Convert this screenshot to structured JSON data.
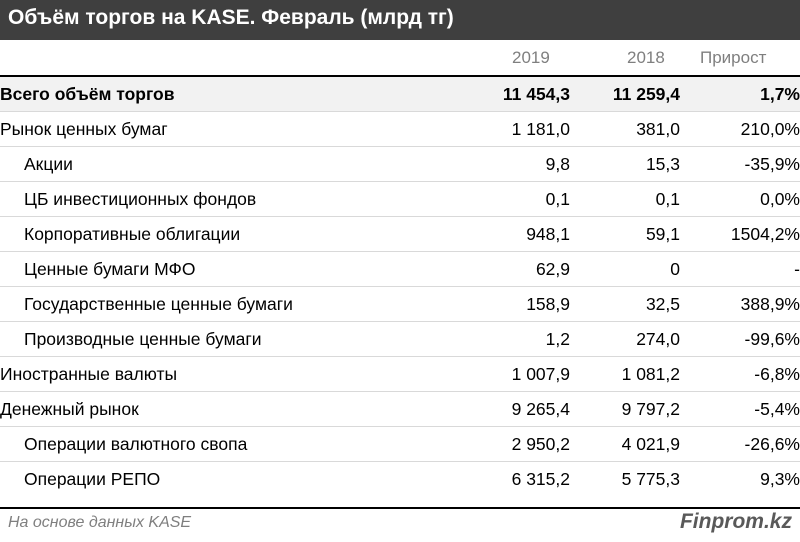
{
  "title": "Объём торгов на KASE. Февраль (млрд тг)",
  "columns": [
    "2019",
    "2018",
    "Прирост"
  ],
  "rows": [
    {
      "label": "Всего объём торгов",
      "v2019": "11 454,3",
      "v2018": "11 259,4",
      "growth": "1,7%",
      "total": true,
      "indent": false
    },
    {
      "label": "Рынок ценных бумаг",
      "v2019": "1 181,0",
      "v2018": "381,0",
      "growth": "210,0%",
      "total": false,
      "indent": false
    },
    {
      "label": "Акции",
      "v2019": "9,8",
      "v2018": "15,3",
      "growth": "-35,9%",
      "total": false,
      "indent": true
    },
    {
      "label": "ЦБ инвестиционных фондов",
      "v2019": "0,1",
      "v2018": "0,1",
      "growth": "0,0%",
      "total": false,
      "indent": true
    },
    {
      "label": "Корпоративные облигации",
      "v2019": "948,1",
      "v2018": "59,1",
      "growth": "1504,2%",
      "total": false,
      "indent": true
    },
    {
      "label": "Ценные бумаги МФО",
      "v2019": "62,9",
      "v2018": "0",
      "growth": "-",
      "total": false,
      "indent": true
    },
    {
      "label": "Государственные ценные бумаги",
      "v2019": "158,9",
      "v2018": "32,5",
      "growth": "388,9%",
      "total": false,
      "indent": true
    },
    {
      "label": "Производные ценные бумаги",
      "v2019": "1,2",
      "v2018": "274,0",
      "growth": "-99,6%",
      "total": false,
      "indent": true
    },
    {
      "label": "Иностранные валюты",
      "v2019": "1 007,9",
      "v2018": "1 081,2",
      "growth": "-6,8%",
      "total": false,
      "indent": false
    },
    {
      "label": "Денежный рынок",
      "v2019": "9 265,4",
      "v2018": "9 797,2",
      "growth": "-5,4%",
      "total": false,
      "indent": false
    },
    {
      "label": "Операции валютного свопа",
      "v2019": "2 950,2",
      "v2018": "4 021,9",
      "growth": "-26,6%",
      "total": false,
      "indent": true
    },
    {
      "label": "Операции РЕПО",
      "v2019": "6 315,2",
      "v2018": "5 775,3",
      "growth": "9,3%",
      "total": false,
      "indent": true
    }
  ],
  "source": "На основе данных KASE",
  "brand": "Finprom.kz",
  "colors": {
    "title_bg": "#3f3f3f",
    "header_text": "#7f7f7f",
    "total_row_bg": "#f2f2f2",
    "row_divider": "#d9d9d9"
  },
  "chart_data": {
    "type": "table",
    "title": "Объём торгов на KASE. Февраль (млрд тг)",
    "columns": [
      "",
      "2019",
      "2018",
      "Прирост"
    ],
    "rows": [
      [
        "Всего объём торгов",
        11454.3,
        11259.4,
        "1,7%"
      ],
      [
        "Рынок ценных бумаг",
        1181.0,
        381.0,
        "210,0%"
      ],
      [
        "Акции",
        9.8,
        15.3,
        "-35,9%"
      ],
      [
        "ЦБ инвестиционных фондов",
        0.1,
        0.1,
        "0,0%"
      ],
      [
        "Корпоративные облигации",
        948.1,
        59.1,
        "1504,2%"
      ],
      [
        "Ценные бумаги МФО",
        62.9,
        0,
        "-"
      ],
      [
        "Государственные ценные бумаги",
        158.9,
        32.5,
        "388,9%"
      ],
      [
        "Производные ценные бумаги",
        1.2,
        274.0,
        "-99,6%"
      ],
      [
        "Иностранные валюты",
        1007.9,
        1081.2,
        "-6,8%"
      ],
      [
        "Денежный рынок",
        9265.4,
        9797.2,
        "-5,4%"
      ],
      [
        "Операции валютного свопа",
        2950.2,
        4021.9,
        "-26,6%"
      ],
      [
        "Операции РЕПО",
        6315.2,
        5775.3,
        "9,3%"
      ]
    ]
  }
}
